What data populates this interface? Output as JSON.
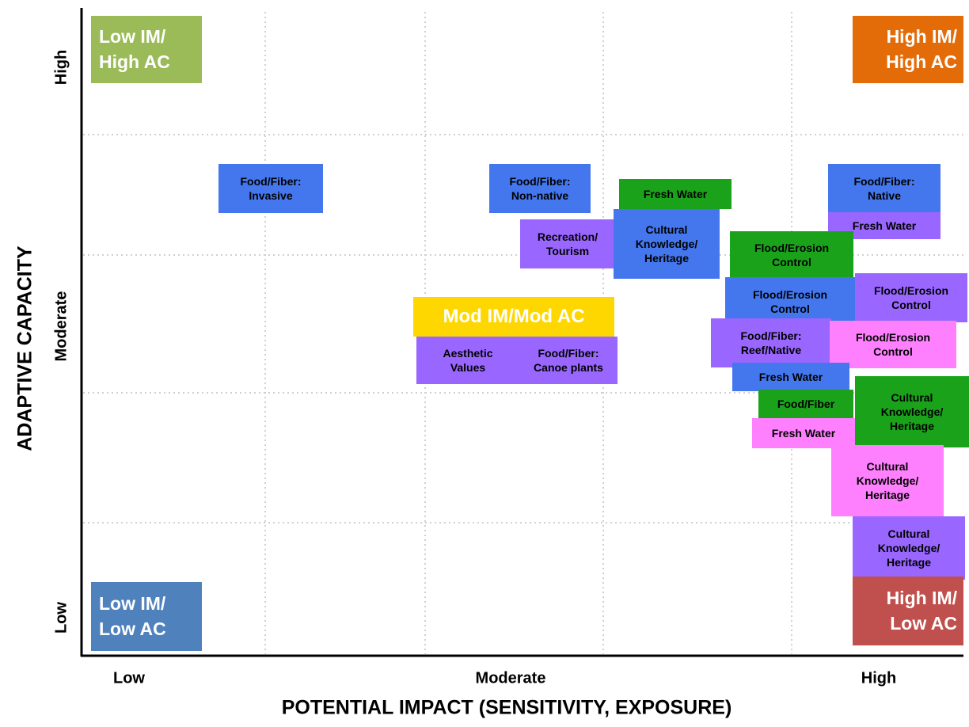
{
  "axes": {
    "x_title": "POTENTIAL IMPACT (SENSITIVITY, EXPOSURE)",
    "y_title": "ADAPTIVE CAPACITY",
    "x_labels": [
      "Low",
      "Moderate",
      "High"
    ],
    "y_labels": [
      "Low",
      "Moderate",
      "High"
    ]
  },
  "corners": [
    {
      "lines": [
        "Low IM/",
        "High AC"
      ],
      "color": "#9bbb59"
    },
    {
      "lines": [
        "High IM/",
        "High AC"
      ],
      "color": "#e36c09"
    },
    {
      "lines": [
        "Low IM/",
        "Low AC"
      ],
      "color": "#4f81bd"
    },
    {
      "lines": [
        "High IM/",
        "Low AC"
      ],
      "color": "#c0504d"
    },
    {
      "lines": [
        "Mod IM/Mod AC"
      ],
      "color": "#ffd700"
    }
  ],
  "items": [
    {
      "lines": [
        "Food/Fiber:",
        "Invasive"
      ],
      "color": "#4477ee"
    },
    {
      "lines": [
        "Food/Fiber:",
        "Non-native"
      ],
      "color": "#4477ee"
    },
    {
      "lines": [
        "Fresh Water"
      ],
      "color": "#1aa31a"
    },
    {
      "lines": [
        "Recreation/",
        "Tourism"
      ],
      "color": "#9966ff"
    },
    {
      "lines": [
        "Cultural",
        "Knowledge/",
        "Heritage"
      ],
      "color": "#4477ee"
    },
    {
      "lines": [
        "Food/Fiber:",
        "Native"
      ],
      "color": "#4477ee"
    },
    {
      "lines": [
        "Fresh Water"
      ],
      "color": "#9966ff"
    },
    {
      "lines": [
        "Flood/Erosion",
        "Control"
      ],
      "color": "#1aa31a"
    },
    {
      "lines": [
        "Flood/Erosion",
        "Control"
      ],
      "color": "#4477ee"
    },
    {
      "lines": [
        "Flood/Erosion",
        "Control"
      ],
      "color": "#9966ff"
    },
    {
      "lines": [
        "Food/Fiber:",
        "Reef/Native"
      ],
      "color": "#9966ff"
    },
    {
      "lines": [
        "Flood/Erosion",
        "Control"
      ],
      "color": "#ff80ff"
    },
    {
      "lines": [
        "Fresh Water"
      ],
      "color": "#4477ee"
    },
    {
      "lines": [
        "Aesthetic",
        "Values"
      ],
      "color": "#9966ff"
    },
    {
      "lines": [
        "Food/Fiber:",
        "Canoe plants"
      ],
      "color": "#9966ff"
    },
    {
      "lines": [
        "Food/Fiber"
      ],
      "color": "#1aa31a"
    },
    {
      "lines": [
        "Cultural",
        "Knowledge/",
        "Heritage"
      ],
      "color": "#1aa31a"
    },
    {
      "lines": [
        "Fresh Water"
      ],
      "color": "#ff80ff"
    },
    {
      "lines": [
        "Cultural",
        "Knowledge/",
        "Heritage"
      ],
      "color": "#ff80ff"
    },
    {
      "lines": [
        "Cultural",
        "Knowledge/",
        "Heritage"
      ],
      "color": "#9966ff"
    }
  ]
}
